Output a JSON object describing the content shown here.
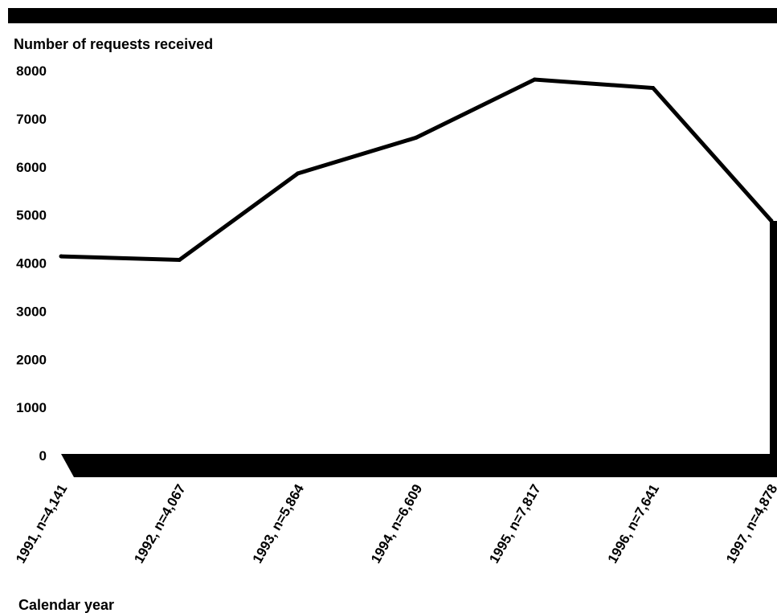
{
  "chart_data": {
    "type": "line",
    "title": "",
    "ylabel": "Number of requests received",
    "xlabel": "Calendar year",
    "ylim": [
      0,
      8000
    ],
    "yticks": [
      0,
      1000,
      2000,
      3000,
      4000,
      5000,
      6000,
      7000,
      8000
    ],
    "categories": [
      "1991,  n=4,141",
      "1992, n=4,067",
      "1993, n=5,864",
      "1994, n=6,609",
      "1995, n=7,817",
      "1996, n=7,641",
      "1997, n=4,878"
    ],
    "x": [
      1991,
      1992,
      1993,
      1994,
      1995,
      1996,
      1997
    ],
    "series": [
      {
        "values": [
          4141,
          4067,
          5864,
          6609,
          7817,
          7641,
          4878
        ]
      }
    ],
    "grid": false,
    "legend": "none",
    "colors": {
      "line": "#000000",
      "background": "#ffffff",
      "frame": "#000000"
    }
  }
}
